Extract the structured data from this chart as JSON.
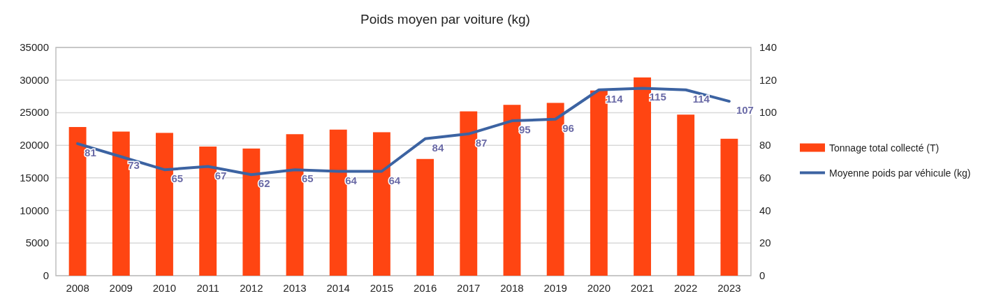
{
  "chart_data": {
    "type": "bar",
    "title": "Poids moyen par voiture (kg)",
    "categories": [
      "2008",
      "2009",
      "2010",
      "2011",
      "2012",
      "2013",
      "2014",
      "2015",
      "2016",
      "2017",
      "2018",
      "2019",
      "2020",
      "2021",
      "2022",
      "2023"
    ],
    "series": [
      {
        "name": "Tonnage total collecté (T)",
        "color": "#ff4512",
        "values": [
          22800,
          22100,
          21900,
          19800,
          19500,
          21700,
          22400,
          22000,
          17900,
          25200,
          26200,
          26500,
          28400,
          30400,
          24700,
          21000
        ]
      },
      {
        "name": "Moyenne poids par véhicule (kg)",
        "type": "line",
        "axis": "y2",
        "color": "#3c63a2",
        "values": [
          81,
          73,
          65,
          67,
          62,
          65,
          64,
          64,
          84,
          87,
          95,
          96,
          114,
          115,
          114,
          107
        ],
        "value_labels": [
          "81",
          "73",
          "65",
          "67",
          "62",
          "65",
          "64",
          "64",
          "84",
          "87",
          "95",
          "96",
          "114",
          "115",
          "114",
          "107"
        ]
      }
    ],
    "ylim": [
      0,
      35000
    ],
    "yticks": [
      0,
      5000,
      10000,
      15000,
      20000,
      25000,
      30000,
      35000
    ],
    "y2lim": [
      0,
      140
    ],
    "y2ticks": [
      0,
      20,
      40,
      60,
      80,
      100,
      120,
      140
    ],
    "grid": "y",
    "legend": "right",
    "marker": "none",
    "line_style": "solid"
  }
}
